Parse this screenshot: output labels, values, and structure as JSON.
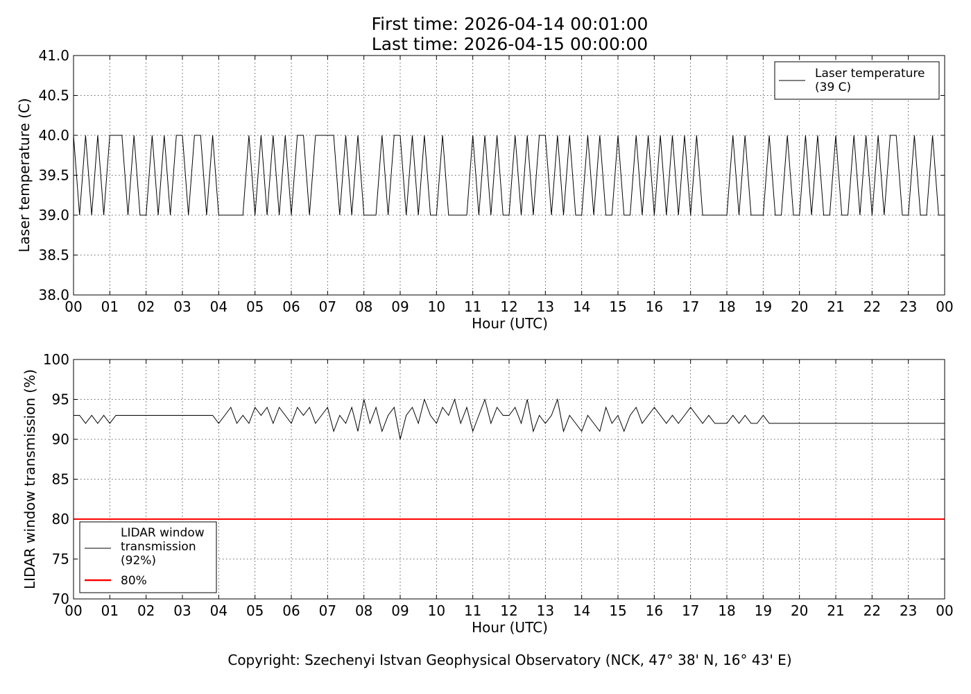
{
  "title_lines": [
    "First time: 2026-04-14 00:01:00",
    "Last time: 2026-04-15 00:00:00"
  ],
  "footer": "Copyright: Szechenyi Istvan Geophysical Observatory (NCK, 47° 38' N, 16° 43' E)",
  "chart_data": [
    {
      "type": "line",
      "xlabel": "Hour (UTC)",
      "ylabel": "Laser temperature (C)",
      "xlim": [
        0,
        24
      ],
      "ylim": [
        38.0,
        41.0
      ],
      "xticks": [
        "00",
        "01",
        "02",
        "03",
        "04",
        "05",
        "06",
        "07",
        "08",
        "09",
        "10",
        "11",
        "12",
        "13",
        "14",
        "15",
        "16",
        "17",
        "18",
        "19",
        "20",
        "21",
        "22",
        "23",
        "00"
      ],
      "yticks": [
        "38.0",
        "38.5",
        "39.0",
        "39.5",
        "40.0",
        "40.5",
        "41.0"
      ],
      "grid": true,
      "legend_position": "top-right",
      "series": [
        {
          "name": "Laser temperature\n(39 C)",
          "legend_lines": [
            "Laser temperature",
            "(39 C)"
          ],
          "color": "#000000",
          "x_step_hours": 0.16667,
          "values": [
            40,
            39,
            40,
            39,
            40,
            39,
            40,
            40,
            40,
            39,
            40,
            39,
            39,
            40,
            39,
            40,
            39,
            40,
            40,
            39,
            40,
            40,
            39,
            40,
            39,
            39,
            39,
            39,
            39,
            40,
            39,
            40,
            39,
            40,
            39,
            40,
            39,
            40,
            40,
            39,
            40,
            40,
            40,
            40,
            39,
            40,
            39,
            40,
            39,
            39,
            39,
            40,
            39,
            40,
            40,
            39,
            40,
            39,
            40,
            39,
            39,
            40,
            39,
            39,
            39,
            39,
            40,
            39,
            40,
            39,
            40,
            39,
            39,
            40,
            39,
            40,
            39,
            40,
            40,
            39,
            40,
            39,
            40,
            39,
            39,
            40,
            39,
            40,
            39,
            39,
            40,
            39,
            39,
            40,
            39,
            40,
            39,
            40,
            39,
            40,
            39,
            40,
            39,
            40,
            39,
            39,
            39,
            39,
            39,
            40,
            39,
            40,
            39,
            39,
            39,
            40,
            39,
            39,
            40,
            39,
            39,
            40,
            39,
            40,
            39,
            39,
            40,
            39,
            39,
            40,
            39,
            40,
            39,
            40,
            39,
            40,
            40,
            39,
            39,
            40,
            39,
            39,
            40,
            39,
            39
          ]
        }
      ]
    },
    {
      "type": "line",
      "xlabel": "Hour (UTC)",
      "ylabel": "LIDAR window transmission (%)",
      "xlim": [
        0,
        24
      ],
      "ylim": [
        70,
        100
      ],
      "xticks": [
        "00",
        "01",
        "02",
        "03",
        "04",
        "05",
        "06",
        "07",
        "08",
        "09",
        "10",
        "11",
        "12",
        "13",
        "14",
        "15",
        "16",
        "17",
        "18",
        "19",
        "20",
        "21",
        "22",
        "23",
        "00"
      ],
      "yticks": [
        "70",
        "75",
        "80",
        "85",
        "90",
        "95",
        "100"
      ],
      "grid": true,
      "legend_position": "bottom-left",
      "series": [
        {
          "name": "LIDAR window\ntransmission\n(92%)",
          "legend_lines": [
            "LIDAR window",
            "transmission",
            "(92%)"
          ],
          "color": "#000000",
          "x_step_hours": 0.16667,
          "values": [
            93,
            93,
            92,
            93,
            92,
            93,
            92,
            93,
            93,
            93,
            93,
            93,
            93,
            93,
            93,
            93,
            93,
            93,
            93,
            93,
            93,
            93,
            93,
            93,
            92,
            93,
            94,
            92,
            93,
            92,
            94,
            93,
            94,
            92,
            94,
            93,
            92,
            94,
            93,
            94,
            92,
            93,
            94,
            91,
            93,
            92,
            94,
            91,
            95,
            92,
            94,
            91,
            93,
            94,
            90,
            93,
            94,
            92,
            95,
            93,
            92,
            94,
            93,
            95,
            92,
            94,
            91,
            93,
            95,
            92,
            94,
            93,
            93,
            94,
            92,
            95,
            91,
            93,
            92,
            93,
            95,
            91,
            93,
            92,
            91,
            93,
            92,
            91,
            94,
            92,
            93,
            91,
            93,
            94,
            92,
            93,
            94,
            93,
            92,
            93,
            92,
            93,
            94,
            93,
            92,
            93,
            92,
            92,
            92,
            93,
            92,
            93,
            92,
            92,
            93,
            92,
            92,
            92,
            92,
            92,
            92,
            92,
            92,
            92,
            92,
            92,
            92,
            92,
            92,
            92,
            92,
            92,
            92,
            92,
            92,
            92,
            92,
            92,
            92,
            92,
            92,
            92,
            92,
            92,
            92
          ]
        },
        {
          "name": "80%",
          "legend_lines": [
            "80%"
          ],
          "color": "#ff0000",
          "constant": 80
        }
      ]
    }
  ]
}
